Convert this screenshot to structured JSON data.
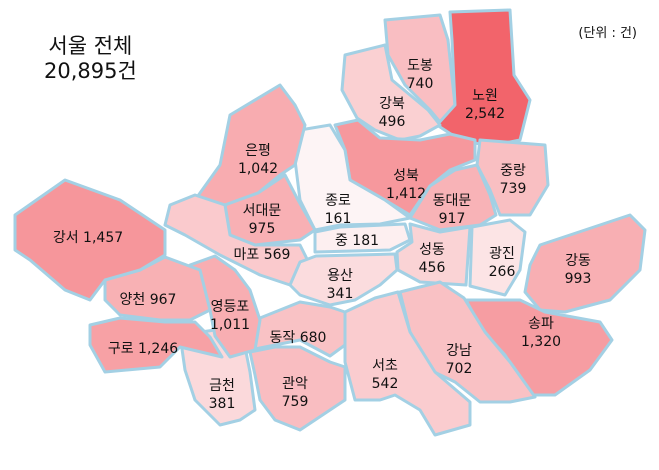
{
  "total": {
    "title": "서울 전체",
    "value": "20,895건"
  },
  "unit": "(단위 : 건)",
  "color_scale": {
    "low": "#fdf4f5",
    "high": "#f2646b"
  },
  "districts": [
    {
      "name": "도봉",
      "value": 740,
      "label": "740"
    },
    {
      "name": "노원",
      "value": 2542,
      "label": "2,542"
    },
    {
      "name": "강북",
      "value": 496,
      "label": "496"
    },
    {
      "name": "성북",
      "value": 1412,
      "label": "1,412"
    },
    {
      "name": "중랑",
      "value": 739,
      "label": "739"
    },
    {
      "name": "동대문",
      "value": 917,
      "label": "917"
    },
    {
      "name": "종로",
      "value": 161,
      "label": "161"
    },
    {
      "name": "은평",
      "value": 1042,
      "label": "1,042"
    },
    {
      "name": "서대문",
      "value": 975,
      "label": "975"
    },
    {
      "name": "마포",
      "value": 569,
      "label": "569"
    },
    {
      "name": "중",
      "value": 181,
      "label": "181"
    },
    {
      "name": "용산",
      "value": 341,
      "label": "341"
    },
    {
      "name": "성동",
      "value": 456,
      "label": "456"
    },
    {
      "name": "광진",
      "value": 266,
      "label": "266"
    },
    {
      "name": "강동",
      "value": 993,
      "label": "993"
    },
    {
      "name": "송파",
      "value": 1320,
      "label": "1,320"
    },
    {
      "name": "강남",
      "value": 702,
      "label": "702"
    },
    {
      "name": "서초",
      "value": 542,
      "label": "542"
    },
    {
      "name": "동작",
      "value": 680,
      "label": "680"
    },
    {
      "name": "관악",
      "value": 759,
      "label": "759"
    },
    {
      "name": "금천",
      "value": 381,
      "label": "381"
    },
    {
      "name": "영등포",
      "value": 1011,
      "label": "1,011"
    },
    {
      "name": "양천",
      "value": 967,
      "label": "967"
    },
    {
      "name": "구로",
      "value": 1246,
      "label": "1,246"
    },
    {
      "name": "강서",
      "value": 1457,
      "label": "1,457"
    }
  ]
}
